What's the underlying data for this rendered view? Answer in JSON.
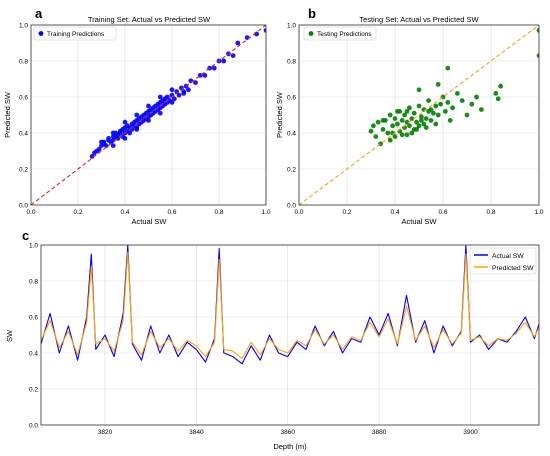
{
  "panel_labels": [
    "a",
    "b",
    "c"
  ],
  "chart_data": [
    {
      "type": "scatter",
      "title": "Training Set: Actual vs Predicted SW",
      "xlabel": "Actual SW",
      "ylabel": "Predicted SW",
      "xlim": [
        0.0,
        1.0
      ],
      "ylim": [
        0.0,
        1.0
      ],
      "xticks": [
        "0.0",
        "0.2",
        "0.4",
        "0.6",
        "0.8",
        "1.0"
      ],
      "yticks": [
        "0.0",
        "0.2",
        "0.4",
        "0.6",
        "0.8",
        "1.0"
      ],
      "grid": true,
      "legend_position": "top-left",
      "series": [
        {
          "name": "Training Predictions",
          "color": "#0000ff",
          "points": [
            [
              0.26,
              0.27
            ],
            [
              0.27,
              0.29
            ],
            [
              0.28,
              0.3
            ],
            [
              0.29,
              0.31
            ],
            [
              0.3,
              0.33
            ],
            [
              0.31,
              0.34
            ],
            [
              0.31,
              0.35
            ],
            [
              0.32,
              0.33
            ],
            [
              0.33,
              0.36
            ],
            [
              0.33,
              0.37
            ],
            [
              0.34,
              0.35
            ],
            [
              0.35,
              0.38
            ],
            [
              0.35,
              0.36
            ],
            [
              0.36,
              0.38
            ],
            [
              0.36,
              0.4
            ],
            [
              0.37,
              0.37
            ],
            [
              0.37,
              0.39
            ],
            [
              0.38,
              0.4
            ],
            [
              0.38,
              0.41
            ],
            [
              0.39,
              0.38
            ],
            [
              0.39,
              0.42
            ],
            [
              0.4,
              0.4
            ],
            [
              0.4,
              0.43
            ],
            [
              0.41,
              0.41
            ],
            [
              0.41,
              0.44
            ],
            [
              0.42,
              0.4
            ],
            [
              0.42,
              0.43
            ],
            [
              0.43,
              0.42
            ],
            [
              0.43,
              0.45
            ],
            [
              0.44,
              0.44
            ],
            [
              0.44,
              0.46
            ],
            [
              0.45,
              0.43
            ],
            [
              0.45,
              0.47
            ],
            [
              0.46,
              0.45
            ],
            [
              0.46,
              0.48
            ],
            [
              0.47,
              0.46
            ],
            [
              0.47,
              0.49
            ],
            [
              0.48,
              0.47
            ],
            [
              0.48,
              0.5
            ],
            [
              0.49,
              0.48
            ],
            [
              0.49,
              0.51
            ],
            [
              0.5,
              0.49
            ],
            [
              0.5,
              0.52
            ],
            [
              0.51,
              0.5
            ],
            [
              0.51,
              0.53
            ],
            [
              0.52,
              0.51
            ],
            [
              0.52,
              0.54
            ],
            [
              0.53,
              0.52
            ],
            [
              0.53,
              0.55
            ],
            [
              0.54,
              0.53
            ],
            [
              0.54,
              0.56
            ],
            [
              0.55,
              0.54
            ],
            [
              0.55,
              0.57
            ],
            [
              0.56,
              0.55
            ],
            [
              0.56,
              0.58
            ],
            [
              0.57,
              0.56
            ],
            [
              0.57,
              0.59
            ],
            [
              0.58,
              0.57
            ],
            [
              0.58,
              0.6
            ],
            [
              0.59,
              0.58
            ],
            [
              0.6,
              0.61
            ],
            [
              0.61,
              0.59
            ],
            [
              0.62,
              0.63
            ],
            [
              0.63,
              0.61
            ],
            [
              0.64,
              0.65
            ],
            [
              0.65,
              0.63
            ],
            [
              0.66,
              0.66
            ],
            [
              0.67,
              0.64
            ],
            [
              0.68,
              0.69
            ],
            [
              0.7,
              0.68
            ],
            [
              0.72,
              0.72
            ],
            [
              0.74,
              0.72
            ],
            [
              0.76,
              0.76
            ],
            [
              0.78,
              0.76
            ],
            [
              0.8,
              0.8
            ],
            [
              0.82,
              0.8
            ],
            [
              0.84,
              0.84
            ],
            [
              0.86,
              0.83
            ],
            [
              0.88,
              0.9
            ],
            [
              0.92,
              0.93
            ],
            [
              0.96,
              0.95
            ],
            [
              1.0,
              0.97
            ],
            [
              0.3,
              0.35
            ],
            [
              0.35,
              0.4
            ],
            [
              0.4,
              0.46
            ],
            [
              0.45,
              0.5
            ],
            [
              0.5,
              0.55
            ],
            [
              0.55,
              0.6
            ],
            [
              0.6,
              0.64
            ],
            [
              0.35,
              0.33
            ],
            [
              0.4,
              0.37
            ],
            [
              0.45,
              0.42
            ],
            [
              0.5,
              0.47
            ],
            [
              0.55,
              0.51
            ],
            [
              0.6,
              0.57
            ],
            [
              0.65,
              0.62
            ]
          ]
        }
      ],
      "reference_line": {
        "color": "#d62728",
        "points": [
          [
            0.0,
            0.0
          ],
          [
            1.0,
            1.0
          ]
        ]
      }
    },
    {
      "type": "scatter",
      "title": "Testing Set: Actual vs Predicted SW",
      "xlabel": "Actual SW",
      "ylabel": "Predicted SW",
      "xlim": [
        0.0,
        1.0
      ],
      "ylim": [
        0.0,
        1.0
      ],
      "xticks": [
        "0.0",
        "0.2",
        "0.4",
        "0.6",
        "0.8",
        "1.0"
      ],
      "yticks": [
        "0.0",
        "0.2",
        "0.4",
        "0.6",
        "0.8",
        "1.0"
      ],
      "grid": true,
      "legend_position": "top-left",
      "series": [
        {
          "name": "Testing Predictions",
          "color": "#008000",
          "points": [
            [
              0.3,
              0.41
            ],
            [
              0.31,
              0.44
            ],
            [
              0.32,
              0.38
            ],
            [
              0.33,
              0.46
            ],
            [
              0.34,
              0.34
            ],
            [
              0.35,
              0.42
            ],
            [
              0.36,
              0.47
            ],
            [
              0.37,
              0.4
            ],
            [
              0.38,
              0.5
            ],
            [
              0.38,
              0.36
            ],
            [
              0.39,
              0.44
            ],
            [
              0.4,
              0.48
            ],
            [
              0.4,
              0.38
            ],
            [
              0.41,
              0.45
            ],
            [
              0.42,
              0.52
            ],
            [
              0.42,
              0.41
            ],
            [
              0.43,
              0.47
            ],
            [
              0.44,
              0.43
            ],
            [
              0.44,
              0.5
            ],
            [
              0.45,
              0.39
            ],
            [
              0.45,
              0.46
            ],
            [
              0.46,
              0.54
            ],
            [
              0.46,
              0.44
            ],
            [
              0.47,
              0.48
            ],
            [
              0.48,
              0.42
            ],
            [
              0.48,
              0.51
            ],
            [
              0.49,
              0.46
            ],
            [
              0.5,
              0.55
            ],
            [
              0.5,
              0.44
            ],
            [
              0.51,
              0.49
            ],
            [
              0.52,
              0.53
            ],
            [
              0.52,
              0.45
            ],
            [
              0.53,
              0.48
            ],
            [
              0.54,
              0.52
            ],
            [
              0.54,
              0.58
            ],
            [
              0.55,
              0.47
            ],
            [
              0.56,
              0.51
            ],
            [
              0.57,
              0.55
            ],
            [
              0.58,
              0.5
            ],
            [
              0.59,
              0.56
            ],
            [
              0.6,
              0.6
            ],
            [
              0.61,
              0.52
            ],
            [
              0.62,
              0.57
            ],
            [
              0.64,
              0.54
            ],
            [
              0.66,
              0.62
            ],
            [
              0.68,
              0.58
            ],
            [
              0.7,
              0.5
            ],
            [
              0.72,
              0.56
            ],
            [
              0.74,
              0.6
            ],
            [
              0.76,
              0.53
            ],
            [
              0.82,
              0.62
            ],
            [
              0.84,
              0.66
            ],
            [
              0.83,
              0.59
            ],
            [
              0.58,
              0.67
            ],
            [
              0.62,
              0.76
            ],
            [
              0.5,
              0.64
            ],
            [
              0.35,
              0.47
            ],
            [
              0.41,
              0.52
            ],
            [
              0.47,
              0.4
            ],
            [
              0.53,
              0.43
            ],
            [
              0.57,
              0.45
            ],
            [
              0.63,
              0.47
            ],
            [
              1.0,
              0.83
            ],
            [
              1.0,
              0.97
            ],
            [
              0.39,
              0.4
            ],
            [
              0.43,
              0.39
            ],
            [
              0.45,
              0.52
            ],
            [
              0.49,
              0.42
            ],
            [
              0.51,
              0.47
            ],
            [
              0.55,
              0.53
            ]
          ]
        }
      ],
      "reference_line": {
        "color": "#ff9f1c",
        "points": [
          [
            0.0,
            0.0
          ],
          [
            1.0,
            1.0
          ]
        ]
      }
    },
    {
      "type": "line",
      "xlabel": "Depth (m)",
      "ylabel": "SW",
      "xlim": [
        3806,
        3915
      ],
      "ylim": [
        0.0,
        1.0
      ],
      "xticks": [
        "3820",
        "3840",
        "3860",
        "3880",
        "3900"
      ],
      "yticks": [
        "0.0",
        "0.2",
        "0.4",
        "0.6",
        "0.8",
        "1.0"
      ],
      "grid": true,
      "legend_position": "top-right",
      "x": [
        3806,
        3808,
        3810,
        3812,
        3814,
        3816,
        3817,
        3818,
        3820,
        3822,
        3824,
        3825,
        3826,
        3828,
        3830,
        3832,
        3834,
        3836,
        3838,
        3840,
        3842,
        3844,
        3845,
        3846,
        3848,
        3850,
        3852,
        3854,
        3856,
        3858,
        3860,
        3862,
        3864,
        3866,
        3868,
        3870,
        3872,
        3874,
        3876,
        3878,
        3880,
        3882,
        3884,
        3886,
        3888,
        3890,
        3892,
        3894,
        3896,
        3898,
        3899,
        3900,
        3902,
        3904,
        3906,
        3908,
        3910,
        3912,
        3914,
        3915
      ],
      "series": [
        {
          "name": "Actual SW",
          "color": "#0000ff",
          "values": [
            0.45,
            0.62,
            0.4,
            0.55,
            0.36,
            0.6,
            0.95,
            0.42,
            0.5,
            0.38,
            0.62,
            1.0,
            0.45,
            0.36,
            0.55,
            0.4,
            0.5,
            0.38,
            0.46,
            0.42,
            0.35,
            0.48,
            0.98,
            0.4,
            0.38,
            0.34,
            0.44,
            0.36,
            0.5,
            0.4,
            0.38,
            0.46,
            0.42,
            0.55,
            0.44,
            0.52,
            0.4,
            0.48,
            0.46,
            0.6,
            0.5,
            0.62,
            0.44,
            0.72,
            0.46,
            0.58,
            0.4,
            0.55,
            0.44,
            0.52,
            1.0,
            0.46,
            0.5,
            0.42,
            0.48,
            0.46,
            0.52,
            0.6,
            0.48,
            0.56
          ]
        },
        {
          "name": "Predicted SW",
          "color": "#ffa500",
          "values": [
            0.47,
            0.58,
            0.43,
            0.52,
            0.39,
            0.57,
            0.88,
            0.45,
            0.48,
            0.41,
            0.58,
            0.96,
            0.46,
            0.39,
            0.52,
            0.43,
            0.48,
            0.41,
            0.47,
            0.44,
            0.38,
            0.46,
            0.92,
            0.42,
            0.41,
            0.37,
            0.46,
            0.39,
            0.48,
            0.42,
            0.4,
            0.47,
            0.44,
            0.53,
            0.45,
            0.5,
            0.42,
            0.49,
            0.47,
            0.57,
            0.49,
            0.59,
            0.45,
            0.66,
            0.47,
            0.55,
            0.43,
            0.53,
            0.45,
            0.51,
            0.95,
            0.47,
            0.49,
            0.44,
            0.48,
            0.47,
            0.51,
            0.57,
            0.49,
            0.54
          ]
        }
      ]
    }
  ]
}
